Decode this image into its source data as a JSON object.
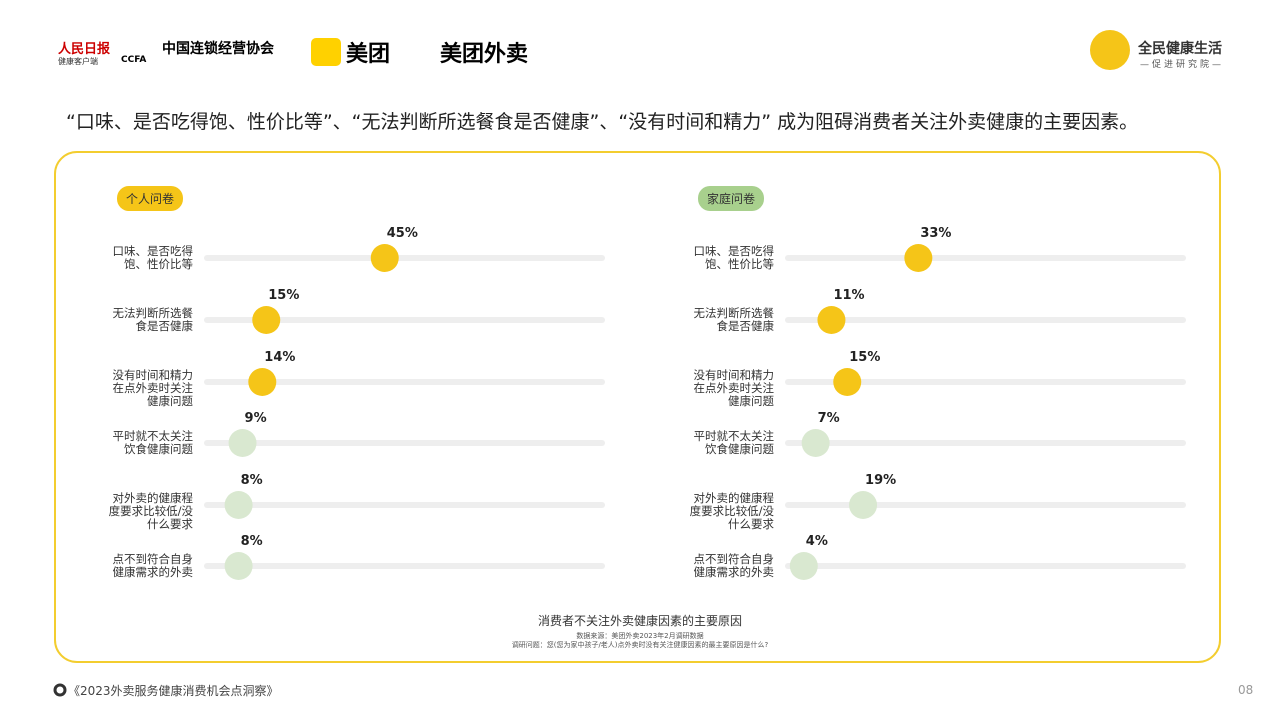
{
  "header": {
    "logos": [
      "人民日报",
      "健康客户端",
      "中国连锁经营协会",
      "CCFA",
      "美团",
      "美团外卖"
    ],
    "brand": "全民健康生活",
    "brand_sub": "—促进研究院—"
  },
  "headline": "“口味、是否吃得饱、性价比等”、“无法判断所选餐食是否健康”、“没有时间和精力” 成为阻碍消费者关注外卖健康的主要因素。",
  "chart_data": [
    {
      "type": "dot",
      "label": "个人问卷",
      "badge_color": "#f5c518",
      "categories": [
        "口味、是否吃得饱、性价比等",
        "无法判断所选餐食是否健康",
        "没有时间和精力在点外卖时关注健康问题",
        "平时就不太关注饮食健康问题",
        "对外卖的健康程度要求比较低/没什么要求",
        "点不到符合自身健康需求的外卖"
      ],
      "values": [
        45,
        15,
        14,
        9,
        8,
        8
      ],
      "value_labels": [
        "45%",
        "15%",
        "14%",
        "9%",
        "8%",
        "8%"
      ],
      "colors": [
        "#f5c518",
        "#f5c518",
        "#f5c518",
        "#d9e8d0",
        "#d9e8d0",
        "#d9e8d0"
      ],
      "xlim": [
        0,
        100
      ]
    },
    {
      "type": "dot",
      "label": "家庭问卷",
      "badge_color": "#a8d08d",
      "categories": [
        "口味、是否吃得饱、性价比等",
        "无法判断所选餐食是否健康",
        "没有时间和精力在点外卖时关注健康问题",
        "平时就不太关注饮食健康问题",
        "对外卖的健康程度要求比较低/没什么要求",
        "点不到符合自身健康需求的外卖"
      ],
      "values": [
        33,
        11,
        15,
        7,
        19,
        4
      ],
      "value_labels": [
        "33%",
        "11%",
        "15%",
        "7%",
        "19%",
        "4%"
      ],
      "colors": [
        "#f5c518",
        "#f5c518",
        "#f5c518",
        "#d9e8d0",
        "#d9e8d0",
        "#d9e8d0"
      ],
      "xlim": [
        0,
        100
      ]
    }
  ],
  "caption": {
    "title": "消费者不关注外卖健康因素的主要原因",
    "source": "数据来源：美团外卖2023年2月调研数据",
    "question": "调研问题：您(您为家中孩子/老人)点外卖时没有关注健康因素的最主要原因是什么?"
  },
  "footer": {
    "report": "《2023外卖服务健康消费机会点洞察》",
    "page": "08"
  }
}
